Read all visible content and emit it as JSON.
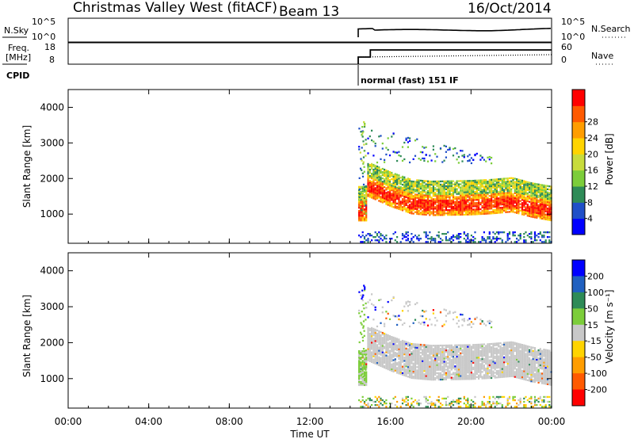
{
  "header": {
    "station": "Christmas Valley West (fitACF)",
    "beam": "Beam 13",
    "date": "16/Oct/2014"
  },
  "panels": {
    "nsky": {
      "left_label": "N.Sky",
      "left_ticks": [
        "10^5",
        "10^0"
      ],
      "right_ticks": [
        "10^5",
        "10^0"
      ],
      "right_label": "N.Search"
    },
    "freq": {
      "left_label_line1": "Freq.",
      "left_label_line2": "[MHz]",
      "left_ticks": [
        "18",
        "8"
      ],
      "right_ticks": [
        "60",
        "0"
      ],
      "right_label": "Nave"
    },
    "cpid": {
      "label": "CPID",
      "mode_text": "normal (fast) 151 IF"
    }
  },
  "chart_data": [
    {
      "type": "heatmap",
      "name": "power",
      "ylabel": "Slant Range [km]",
      "yticks": [
        1000,
        2000,
        3000,
        4000
      ],
      "ylim": [
        180,
        4500
      ],
      "xlim_hours": [
        0,
        24
      ],
      "colorbar": {
        "label": "Power [dB]",
        "ticks": [
          4,
          8,
          12,
          16,
          20,
          24,
          28
        ],
        "colors": [
          "#0000ff",
          "#1f4fc8",
          "#2e8b57",
          "#7ccd3a",
          "#c8dc3c",
          "#ffd400",
          "#ff9d00",
          "#ff5a00",
          "#ff0000"
        ]
      },
      "features": {
        "data_start_hour": 14.4,
        "main_band_km": [
          [
            14.8,
            1750
          ],
          [
            16,
            1450
          ],
          [
            17,
            1250
          ],
          [
            18,
            1200
          ],
          [
            20,
            1220
          ],
          [
            21,
            1250
          ],
          [
            22,
            1300
          ],
          [
            23,
            1150
          ],
          [
            24,
            1050
          ]
        ],
        "near_range_km": [
          200,
          500
        ]
      }
    },
    {
      "type": "heatmap",
      "name": "velocity",
      "ylabel": "Slant Range [km]",
      "yticks": [
        1000,
        2000,
        3000,
        4000
      ],
      "ylim": [
        180,
        4500
      ],
      "xlim_hours": [
        0,
        24
      ],
      "colorbar": {
        "label": "Velocity [m s⁻¹]",
        "ticks": [
          200,
          100,
          50,
          15,
          -15,
          -50,
          -100,
          -200
        ],
        "colors": [
          "#0000ff",
          "#2060c0",
          "#2e8b57",
          "#7ccd3a",
          "#c8c8c8",
          "#ffd400",
          "#ff9d00",
          "#ff5a00",
          "#ff0000"
        ]
      }
    }
  ],
  "xaxis": {
    "label": "Time UT",
    "ticks": [
      "00:00",
      "04:00",
      "08:00",
      "12:00",
      "16:00",
      "20:00",
      "00:00"
    ],
    "tick_hours": [
      0,
      4,
      8,
      12,
      16,
      20,
      24
    ]
  }
}
